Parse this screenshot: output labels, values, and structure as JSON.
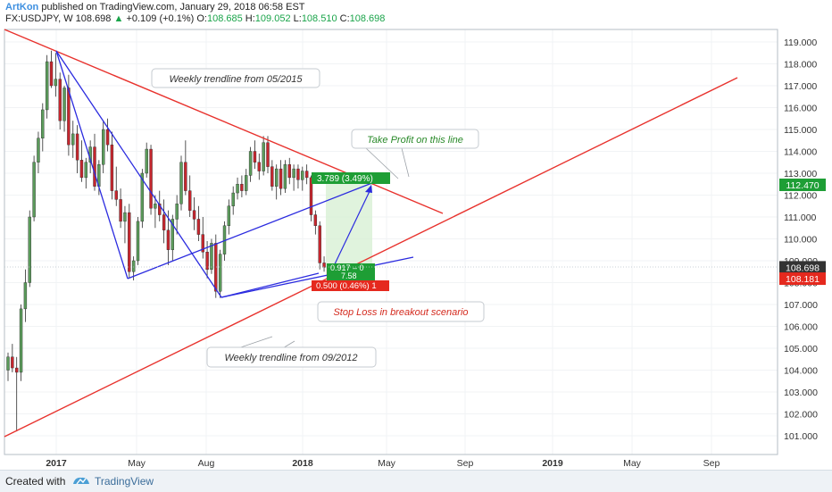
{
  "header": {
    "author": "ArtKon",
    "published": "published on TradingView.com, January 29, 2018 06:58 EST"
  },
  "symbol_bar": {
    "symbol": "FX:USDJPY, W",
    "price": "108.698",
    "change": "+0.109 (+0.1%)",
    "open_label": "O:",
    "open": "108.685",
    "high_label": "H:",
    "high": "109.052",
    "low_label": "L:",
    "low": "108.510",
    "close_label": "C:",
    "close": "108.698"
  },
  "footer": {
    "created": "Created with",
    "brand": "TradingView"
  },
  "colors": {
    "up": "#5b9b5b",
    "down": "#c6262e",
    "trend_red": "#e8322d",
    "trend_blue": "#2b2bdf",
    "tp_box": "#1e9e35",
    "sl_box": "#e5291e",
    "price_tag": "#333333"
  },
  "chart_data": {
    "type": "candlestick",
    "ylim": [
      100.5,
      119.4
    ],
    "y_ticks": [
      "119.000",
      "118.000",
      "117.000",
      "116.000",
      "115.000",
      "114.000",
      "113.000",
      "112.000",
      "111.000",
      "110.000",
      "109.000",
      "108.000",
      "107.000",
      "106.000",
      "105.000",
      "104.000",
      "103.000",
      "102.000",
      "101.000"
    ],
    "x_ticks": [
      "2017",
      "May",
      "Aug",
      "2018",
      "May",
      "Sep",
      "2019",
      "May",
      "Sep"
    ],
    "price_tags": [
      {
        "value": 112.47,
        "label": "112.470",
        "color": "#1e9e35"
      },
      {
        "value": 108.698,
        "label": "108.698",
        "color": "#333333"
      },
      {
        "value": 108.181,
        "label": "108.181",
        "color": "#e5291e"
      }
    ],
    "annotations": [
      "Weekly trendline from 05/2015",
      "Take Profit on this line",
      "Stop Loss in breakout scenario",
      "Weekly trendline from 09/2012"
    ],
    "position_labels": {
      "target": "3.789 (3.49%)",
      "ratio_top": "0.917 – 0",
      "ratio_bottom": "7.58",
      "stop": "0.500 (0.46%) 1"
    },
    "candles": [
      [
        104.0,
        104.8,
        103.5,
        104.6
      ],
      [
        104.6,
        105.2,
        103.9,
        104.1
      ],
      [
        104.1,
        104.6,
        101.2,
        103.9
      ],
      [
        103.9,
        107.0,
        103.5,
        106.8
      ],
      [
        106.8,
        108.6,
        106.2,
        108.0
      ],
      [
        108.0,
        111.3,
        107.8,
        111.0
      ],
      [
        111.0,
        113.8,
        110.8,
        113.5
      ],
      [
        113.5,
        114.9,
        113.0,
        114.6
      ],
      [
        114.6,
        116.2,
        114.0,
        115.9
      ],
      [
        115.9,
        118.4,
        115.5,
        118.1
      ],
      [
        118.1,
        118.6,
        116.9,
        117.0
      ],
      [
        117.0,
        118.5,
        116.5,
        117.3
      ],
      [
        117.3,
        117.6,
        115.0,
        115.4
      ],
      [
        115.4,
        117.0,
        114.9,
        116.9
      ],
      [
        116.9,
        117.5,
        113.8,
        114.3
      ],
      [
        114.3,
        115.4,
        113.7,
        114.8
      ],
      [
        114.8,
        115.2,
        113.0,
        113.6
      ],
      [
        113.6,
        114.5,
        112.6,
        112.8
      ],
      [
        112.8,
        113.7,
        112.3,
        113.5
      ],
      [
        113.5,
        114.5,
        113.0,
        114.2
      ],
      [
        114.2,
        114.8,
        112.2,
        112.4
      ],
      [
        112.4,
        113.6,
        112.0,
        113.4
      ],
      [
        113.4,
        115.4,
        113.0,
        115.0
      ],
      [
        115.0,
        115.5,
        114.0,
        114.3
      ],
      [
        114.3,
        114.9,
        111.8,
        112.2
      ],
      [
        112.2,
        113.3,
        111.5,
        111.8
      ],
      [
        111.8,
        112.3,
        110.5,
        110.8
      ],
      [
        110.8,
        111.5,
        109.8,
        111.2
      ],
      [
        111.2,
        111.6,
        108.2,
        108.5
      ],
      [
        108.5,
        109.2,
        108.1,
        109.0
      ],
      [
        109.0,
        111.0,
        108.8,
        110.8
      ],
      [
        110.8,
        113.2,
        110.5,
        113.0
      ],
      [
        113.0,
        114.4,
        112.8,
        114.1
      ],
      [
        114.1,
        114.3,
        111.1,
        111.4
      ],
      [
        111.4,
        112.0,
        110.5,
        111.6
      ],
      [
        111.6,
        112.2,
        110.8,
        111.1
      ],
      [
        111.1,
        111.8,
        109.8,
        110.4
      ],
      [
        110.4,
        111.3,
        108.8,
        109.5
      ],
      [
        109.5,
        111.1,
        109.0,
        110.9
      ],
      [
        110.9,
        112.0,
        110.2,
        111.6
      ],
      [
        111.6,
        113.8,
        111.3,
        113.5
      ],
      [
        113.5,
        114.5,
        112.0,
        112.2
      ],
      [
        112.2,
        112.9,
        111.0,
        111.3
      ],
      [
        111.3,
        111.9,
        110.4,
        110.9
      ],
      [
        110.9,
        111.5,
        109.9,
        110.2
      ],
      [
        110.2,
        111.0,
        109.1,
        109.4
      ],
      [
        109.4,
        109.9,
        108.2,
        108.6
      ],
      [
        108.6,
        110.0,
        108.4,
        109.8
      ],
      [
        109.8,
        110.2,
        107.3,
        107.6
      ],
      [
        107.6,
        109.5,
        107.3,
        109.3
      ],
      [
        109.3,
        110.8,
        109.0,
        110.6
      ],
      [
        110.6,
        111.8,
        110.2,
        111.5
      ],
      [
        111.5,
        112.4,
        111.1,
        112.1
      ],
      [
        112.1,
        112.8,
        111.8,
        112.5
      ],
      [
        112.5,
        112.9,
        111.9,
        112.2
      ],
      [
        112.2,
        113.2,
        112.0,
        112.9
      ],
      [
        112.9,
        114.2,
        112.6,
        114.0
      ],
      [
        114.0,
        114.5,
        113.2,
        113.5
      ],
      [
        113.5,
        113.9,
        112.7,
        113.1
      ],
      [
        113.1,
        114.7,
        112.9,
        114.4
      ],
      [
        114.4,
        114.7,
        113.0,
        113.3
      ],
      [
        113.3,
        113.6,
        112.2,
        112.4
      ],
      [
        112.4,
        113.4,
        111.8,
        113.2
      ],
      [
        113.2,
        113.6,
        112.0,
        112.3
      ],
      [
        112.3,
        113.6,
        112.1,
        113.4
      ],
      [
        113.4,
        113.7,
        112.5,
        112.8
      ],
      [
        112.8,
        113.4,
        112.2,
        113.2
      ],
      [
        113.2,
        113.4,
        112.3,
        112.7
      ],
      [
        112.7,
        113.3,
        112.2,
        113.1
      ],
      [
        113.1,
        113.4,
        112.5,
        112.8
      ],
      [
        112.8,
        112.9,
        110.8,
        111.1
      ],
      [
        111.1,
        111.3,
        110.2,
        110.6
      ],
      [
        110.6,
        110.8,
        108.6,
        108.9
      ],
      [
        108.9,
        109.2,
        108.5,
        108.7
      ]
    ],
    "trendlines": [
      {
        "name": "Weekly trendline from 05/2015",
        "color": "#e8322d",
        "from": [
          "Oct 2016",
          119.3
        ],
        "to": [
          "Jun 2018",
          111.1
        ]
      },
      {
        "name": "Weekly trendline from 09/2012",
        "color": "#e8322d",
        "from": [
          "Oct 2016",
          100.9
        ],
        "to": [
          "Sep 2019",
          117.4
        ]
      }
    ]
  }
}
